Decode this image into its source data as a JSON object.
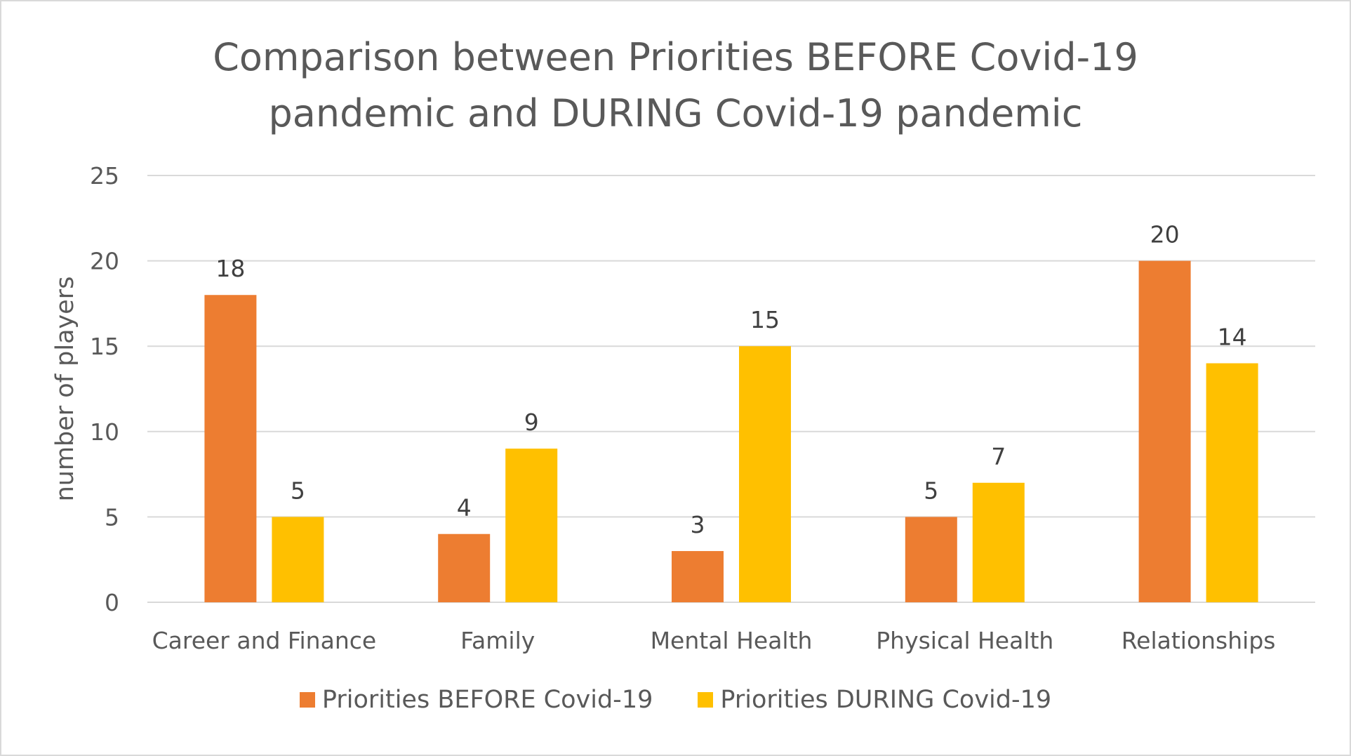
{
  "chart_data": {
    "type": "bar",
    "title_lines": [
      "Comparison between Priorities BEFORE Covid-19",
      "pandemic and DURING Covid-19 pandemic"
    ],
    "xlabel": "",
    "ylabel": "number of players",
    "ylim": [
      0,
      25
    ],
    "yticks": [
      0,
      5,
      10,
      15,
      20,
      25
    ],
    "grid": true,
    "legend_position": "bottom",
    "categories": [
      "Career and Finance",
      "Family",
      "Mental Health",
      "Physical Health",
      "Relationships"
    ],
    "series": [
      {
        "name": "Priorities BEFORE Covid-19",
        "color": "#ed7d31",
        "values": [
          18,
          4,
          3,
          5,
          20
        ]
      },
      {
        "name": "Priorities DURING Covid-19",
        "color": "#ffc000",
        "values": [
          5,
          9,
          15,
          7,
          14
        ]
      }
    ]
  }
}
